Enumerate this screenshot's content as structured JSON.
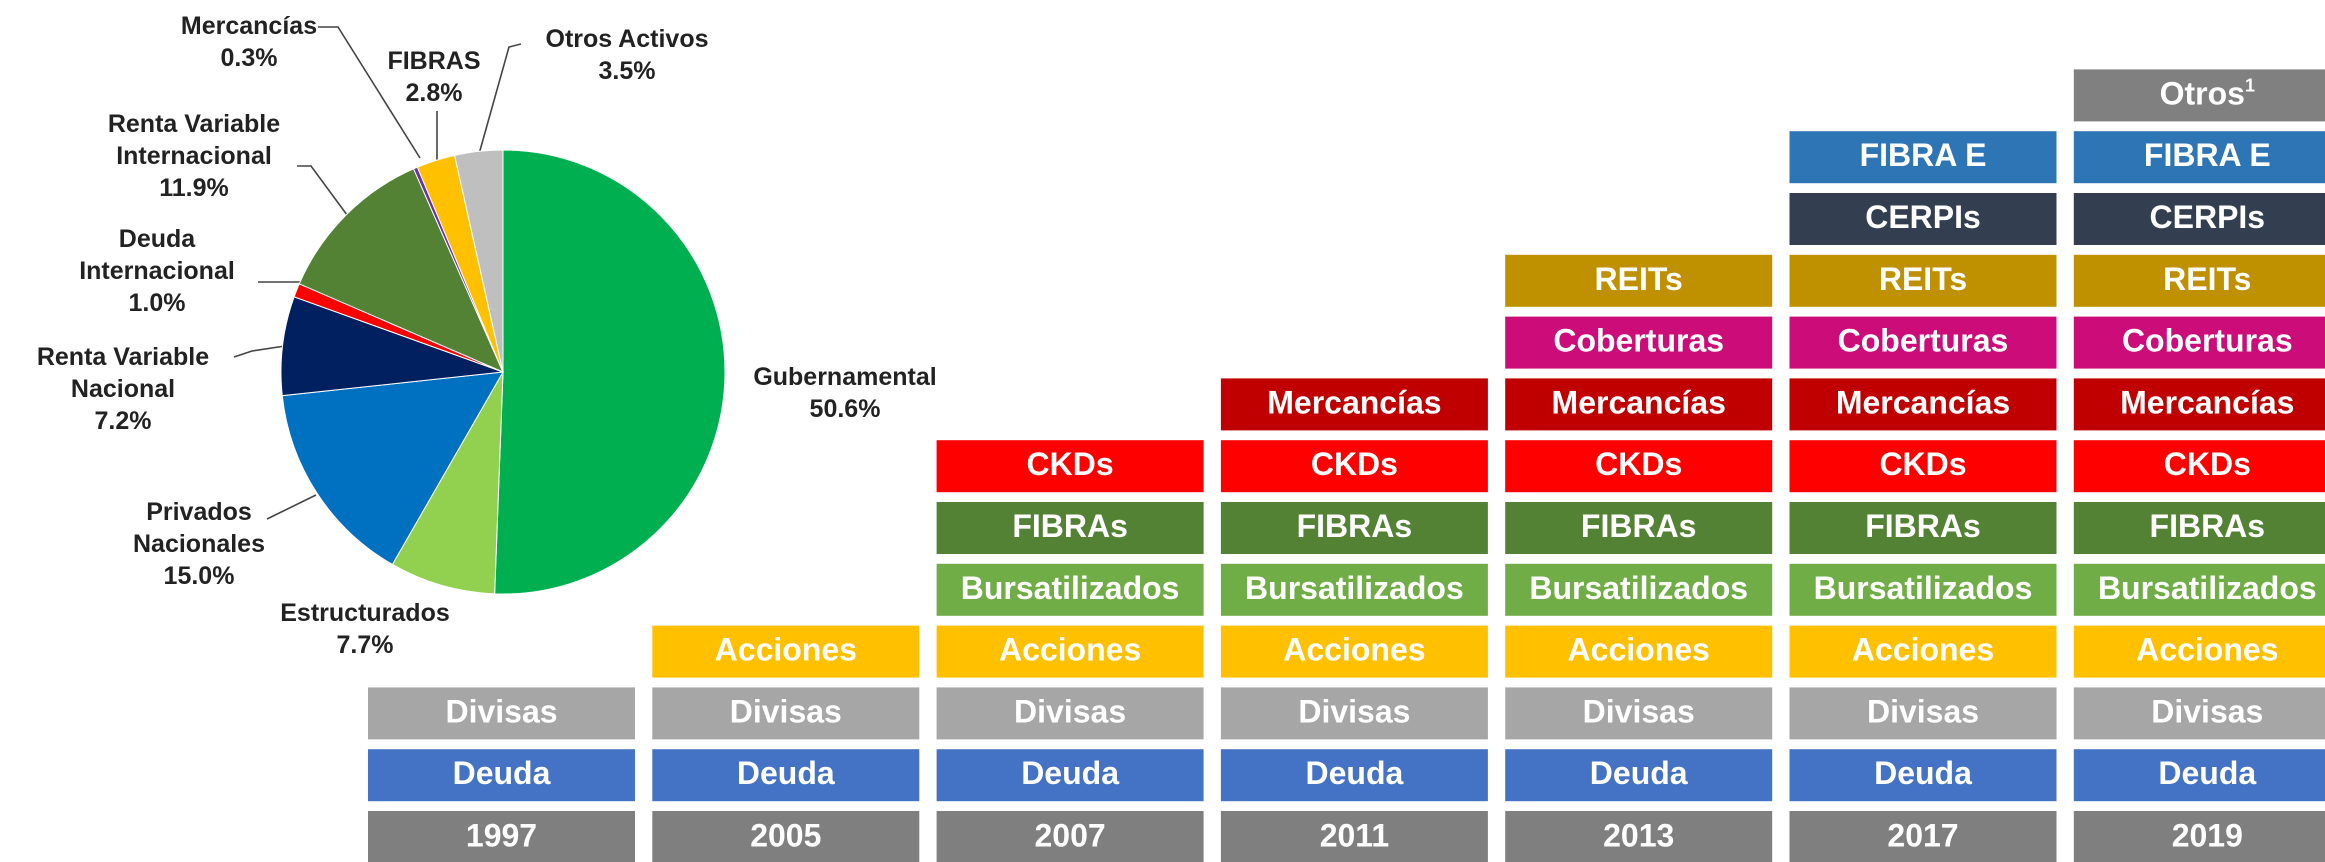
{
  "chart_data": {
    "type": "pie",
    "categories": [
      "Gubernamental",
      "Estructurados",
      "Privados Nacionales",
      "Renta Variable Nacional",
      "Deuda Internacional",
      "Renta Variable Internacional",
      "Mercancías",
      "FIBRAS",
      "Otros Activos"
    ],
    "values": [
      50.6,
      7.7,
      15.0,
      7.2,
      1.0,
      11.9,
      0.3,
      2.8,
      3.5
    ],
    "value_labels": [
      "50.6%",
      "7.7%",
      "15.0%",
      "7.2%",
      "1.0%",
      "11.9%",
      "0.3%",
      "2.8%",
      "3.5%"
    ],
    "colors": [
      "#00b050",
      "#92d050",
      "#0070c0",
      "#002060",
      "#ff0000",
      "#548235",
      "#7030a0",
      "#ffc000",
      "#bfbfbf"
    ]
  },
  "timeline": {
    "columns": [
      {
        "year": "1997",
        "items": [
          {
            "label": "Deuda",
            "color": "#4472c4"
          },
          {
            "label": "Divisas",
            "color": "#a6a6a6"
          }
        ]
      },
      {
        "year": "2005",
        "items": [
          {
            "label": "Deuda",
            "color": "#4472c4"
          },
          {
            "label": "Divisas",
            "color": "#a6a6a6"
          },
          {
            "label": "Acciones",
            "color": "#ffc000"
          }
        ]
      },
      {
        "year": "2007",
        "items": [
          {
            "label": "Deuda",
            "color": "#4472c4"
          },
          {
            "label": "Divisas",
            "color": "#a6a6a6"
          },
          {
            "label": "Acciones",
            "color": "#ffc000"
          },
          {
            "label": "Bursatilizados",
            "color": "#70ad47"
          },
          {
            "label": "FIBRAs",
            "color": "#548235"
          },
          {
            "label": "CKDs",
            "color": "#ff0000"
          }
        ]
      },
      {
        "year": "2011",
        "items": [
          {
            "label": "Deuda",
            "color": "#4472c4"
          },
          {
            "label": "Divisas",
            "color": "#a6a6a6"
          },
          {
            "label": "Acciones",
            "color": "#ffc000"
          },
          {
            "label": "Bursatilizados",
            "color": "#70ad47"
          },
          {
            "label": "FIBRAs",
            "color": "#548235"
          },
          {
            "label": "CKDs",
            "color": "#ff0000"
          },
          {
            "label": "Mercancías",
            "color": "#c00000"
          }
        ]
      },
      {
        "year": "2013",
        "items": [
          {
            "label": "Deuda",
            "color": "#4472c4"
          },
          {
            "label": "Divisas",
            "color": "#a6a6a6"
          },
          {
            "label": "Acciones",
            "color": "#ffc000"
          },
          {
            "label": "Bursatilizados",
            "color": "#70ad47"
          },
          {
            "label": "FIBRAs",
            "color": "#548235"
          },
          {
            "label": "CKDs",
            "color": "#ff0000"
          },
          {
            "label": "Mercancías",
            "color": "#c00000"
          },
          {
            "label": "Coberturas",
            "color": "#cc0c79"
          },
          {
            "label": "REITs",
            "color": "#bf9000"
          }
        ]
      },
      {
        "year": "2017",
        "items": [
          {
            "label": "Deuda",
            "color": "#4472c4"
          },
          {
            "label": "Divisas",
            "color": "#a6a6a6"
          },
          {
            "label": "Acciones",
            "color": "#ffc000"
          },
          {
            "label": "Bursatilizados",
            "color": "#70ad47"
          },
          {
            "label": "FIBRAs",
            "color": "#548235"
          },
          {
            "label": "CKDs",
            "color": "#ff0000"
          },
          {
            "label": "Mercancías",
            "color": "#c00000"
          },
          {
            "label": "Coberturas",
            "color": "#cc0c79"
          },
          {
            "label": "REITs",
            "color": "#bf9000"
          },
          {
            "label": "CERPIs",
            "color": "#333f50"
          },
          {
            "label": "FIBRA E",
            "color": "#2e75b6"
          }
        ]
      },
      {
        "year": "2019",
        "items": [
          {
            "label": "Deuda",
            "color": "#4472c4"
          },
          {
            "label": "Divisas",
            "color": "#a6a6a6"
          },
          {
            "label": "Acciones",
            "color": "#ffc000"
          },
          {
            "label": "Bursatilizados",
            "color": "#70ad47"
          },
          {
            "label": "FIBRAs",
            "color": "#548235"
          },
          {
            "label": "CKDs",
            "color": "#ff0000"
          },
          {
            "label": "Mercancías",
            "color": "#c00000"
          },
          {
            "label": "Coberturas",
            "color": "#cc0c79"
          },
          {
            "label": "REITs",
            "color": "#bf9000"
          },
          {
            "label": "CERPIs",
            "color": "#333f50"
          },
          {
            "label": "FIBRA E",
            "color": "#2e75b6"
          },
          {
            "label": "Otros",
            "sup": "1",
            "color": "#808080"
          }
        ]
      }
    ]
  }
}
